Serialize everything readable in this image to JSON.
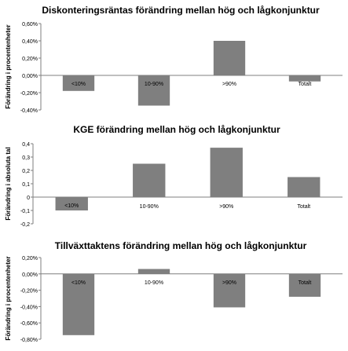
{
  "chart_data": [
    {
      "type": "bar",
      "title": "Diskonteringsräntas förändring mellan hög och lågkonjunktur",
      "xlabel": "",
      "ylabel": "Förändring i procentenheter",
      "categories": [
        "<10%",
        "10-90%",
        ">90%",
        "Totalt"
      ],
      "values": [
        -0.18,
        -0.35,
        0.4,
        -0.07
      ],
      "ylim": [
        -0.4,
        0.6
      ],
      "yticks": [
        0.6,
        0.4,
        0.2,
        0.0,
        -0.2,
        -0.4
      ],
      "yticklabels": [
        "0,60%",
        "0,40%",
        "0,20%",
        "0,00%",
        "-0,20%",
        "-0,40%"
      ],
      "grid": false,
      "bar_color": "#7f7f7f"
    },
    {
      "type": "bar",
      "title": "KGE förändring mellan hög och lågkonjunktur",
      "xlabel": "",
      "ylabel": "Förändring i absoluta tal",
      "categories": [
        "<10%",
        "10-90%",
        ">90%",
        "Totalt"
      ],
      "values": [
        -0.1,
        0.25,
        0.37,
        0.15
      ],
      "ylim": [
        -0.2,
        0.4
      ],
      "yticks": [
        0.4,
        0.3,
        0.2,
        0.1,
        0.0,
        -0.1,
        -0.2
      ],
      "yticklabels": [
        "0,4",
        "0,3",
        "0,2",
        "0,1",
        "0",
        "-0,1",
        "-0,2"
      ],
      "grid": false,
      "bar_color": "#7f7f7f"
    },
    {
      "type": "bar",
      "title": "Tillväxttaktens förändring mellan hög och lågkonjunktur",
      "xlabel": "",
      "ylabel": "Förändring i procentenheter",
      "categories": [
        "<10%",
        "10-90%",
        ">90%",
        "Totalt"
      ],
      "values": [
        -0.75,
        0.06,
        -0.41,
        -0.28
      ],
      "ylim": [
        -0.8,
        0.2
      ],
      "yticks": [
        0.2,
        0.0,
        -0.2,
        -0.4,
        -0.6,
        -0.8
      ],
      "yticklabels": [
        "0,20%",
        "0,00%",
        "-0,20%",
        "-0,40%",
        "-0,60%",
        "-0,80%"
      ],
      "grid": false,
      "bar_color": "#7f7f7f"
    }
  ]
}
